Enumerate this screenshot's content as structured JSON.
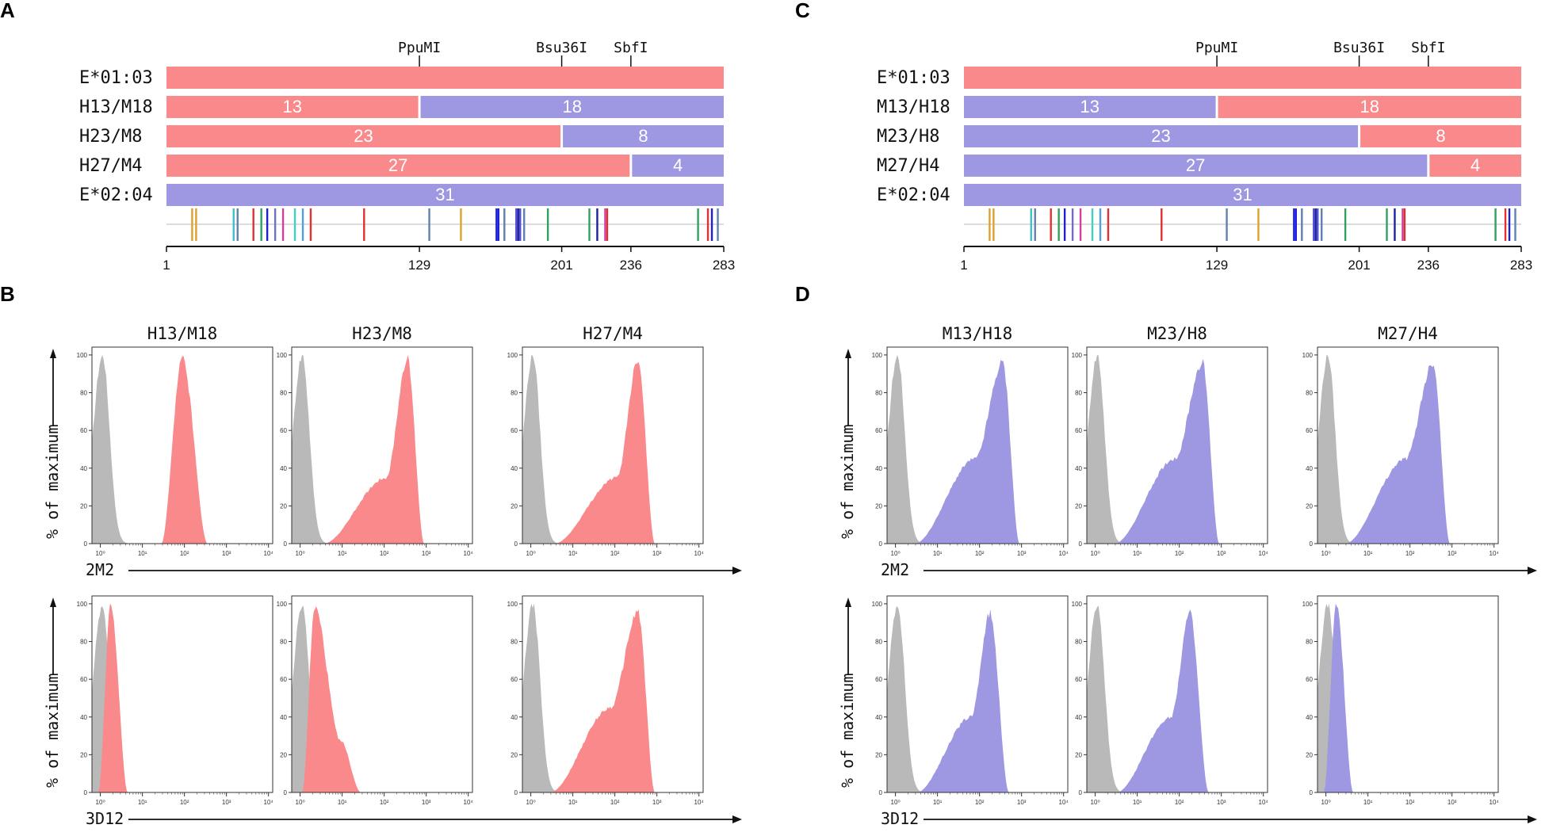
{
  "colors": {
    "red": "#f9898b",
    "blue": "#9d98e1",
    "gray": "#b9b9b9"
  },
  "panels": {
    "A": {
      "letter": "A",
      "sites": [
        "PpuMI",
        "Bsu36I",
        "SbfI"
      ],
      "rows": [
        {
          "label": "E*01:03",
          "segments": [
            {
              "text": "",
              "color": "red",
              "start": 1,
              "end": 283
            }
          ]
        },
        {
          "label": "H13/M18",
          "segments": [
            {
              "text": "13",
              "color": "red",
              "start": 1,
              "end": 129
            },
            {
              "text": "18",
              "color": "blue",
              "start": 129,
              "end": 283
            }
          ]
        },
        {
          "label": "H23/M8",
          "segments": [
            {
              "text": "23",
              "color": "red",
              "start": 1,
              "end": 201
            },
            {
              "text": "8",
              "color": "blue",
              "start": 201,
              "end": 283
            }
          ]
        },
        {
          "label": "H27/M4",
          "segments": [
            {
              "text": "27",
              "color": "red",
              "start": 1,
              "end": 236
            },
            {
              "text": "4",
              "color": "blue",
              "start": 236,
              "end": 283
            }
          ]
        },
        {
          "label": "E*02:04",
          "segments": [
            {
              "text": "31",
              "color": "blue",
              "start": 1,
              "end": 283
            }
          ]
        }
      ]
    },
    "C": {
      "letter": "C",
      "sites": [
        "PpuMI",
        "Bsu36I",
        "SbfI"
      ],
      "rows": [
        {
          "label": "E*01:03",
          "segments": [
            {
              "text": "",
              "color": "red",
              "start": 1,
              "end": 283
            }
          ]
        },
        {
          "label": "M13/H18",
          "segments": [
            {
              "text": "13",
              "color": "blue",
              "start": 1,
              "end": 129
            },
            {
              "text": "18",
              "color": "red",
              "start": 129,
              "end": 283
            }
          ]
        },
        {
          "label": "M23/H8",
          "segments": [
            {
              "text": "23",
              "color": "blue",
              "start": 1,
              "end": 201
            },
            {
              "text": "8",
              "color": "red",
              "start": 201,
              "end": 283
            }
          ]
        },
        {
          "label": "M27/H4",
          "segments": [
            {
              "text": "27",
              "color": "blue",
              "start": 1,
              "end": 236
            },
            {
              "text": "4",
              "color": "red",
              "start": 236,
              "end": 283
            }
          ]
        },
        {
          "label": "E*02:04",
          "segments": [
            {
              "text": "31",
              "color": "blue",
              "start": 1,
              "end": 283
            }
          ]
        }
      ]
    },
    "B": {
      "letter": "B",
      "fill": "red",
      "columns": [
        "H13/M18",
        "H23/M8",
        "H27/M4"
      ],
      "rows": [
        {
          "xlabel": "2M2",
          "ylabel": "% of maximum",
          "hists": [
            "bell_mid",
            "skew_high",
            "skew_high"
          ]
        },
        {
          "xlabel": "3D12",
          "ylabel": "% of maximum",
          "hists": [
            "narrow_low",
            "low_tail",
            "skew_mid"
          ]
        }
      ]
    },
    "D": {
      "letter": "D",
      "fill": "blue",
      "columns": [
        "M13/H18",
        "M23/H8",
        "M27/H4"
      ],
      "rows": [
        {
          "xlabel": "2M2",
          "ylabel": "% of maximum",
          "hists": [
            "skew_mid",
            "skew_mid",
            "skew_mid"
          ]
        },
        {
          "xlabel": "3D12",
          "ylabel": "% of maximum",
          "hists": [
            "skew_low",
            "skew_low",
            "narrow_low"
          ]
        }
      ]
    }
  },
  "alignment": {
    "ticks": [
      "1",
      "129",
      "201",
      "236",
      "283"
    ],
    "site_positions": [
      129,
      201,
      236
    ],
    "marks": [
      {
        "pos": 14,
        "color": "#e0a030"
      },
      {
        "pos": 16,
        "color": "#e0a030"
      },
      {
        "pos": 35,
        "color": "#40c0c0"
      },
      {
        "pos": 37,
        "color": "#6080b0"
      },
      {
        "pos": 45,
        "color": "#e03030"
      },
      {
        "pos": 49,
        "color": "#30a060"
      },
      {
        "pos": 52,
        "color": "#2020d0"
      },
      {
        "pos": 56,
        "color": "#7070c0"
      },
      {
        "pos": 60,
        "color": "#d040a0"
      },
      {
        "pos": 66,
        "color": "#40d0c0"
      },
      {
        "pos": 70,
        "color": "#50a0e0"
      },
      {
        "pos": 74,
        "color": "#e03030"
      },
      {
        "pos": 101,
        "color": "#e03030"
      },
      {
        "pos": 134,
        "color": "#6080b0"
      },
      {
        "pos": 150,
        "color": "#e0a030"
      },
      {
        "pos": 168,
        "color": "#2020e0"
      },
      {
        "pos": 169,
        "color": "#2020e0"
      },
      {
        "pos": 172,
        "color": "#6080b0"
      },
      {
        "pos": 178,
        "color": "#5050d0"
      },
      {
        "pos": 179,
        "color": "#2020a0"
      },
      {
        "pos": 180,
        "color": "#5050d0"
      },
      {
        "pos": 182,
        "color": "#6080b0"
      },
      {
        "pos": 194,
        "color": "#30a060"
      },
      {
        "pos": 215,
        "color": "#30a060"
      },
      {
        "pos": 219,
        "color": "#2020a0"
      },
      {
        "pos": 223,
        "color": "#d040a0"
      },
      {
        "pos": 224,
        "color": "#e03030"
      },
      {
        "pos": 270,
        "color": "#30a060"
      },
      {
        "pos": 275,
        "color": "#e03030"
      },
      {
        "pos": 277,
        "color": "#2020d0"
      },
      {
        "pos": 280,
        "color": "#6080b0"
      }
    ]
  },
  "hist_axis": {
    "ymax_label": "100",
    "yticks": [
      "0",
      "20",
      "40",
      "60",
      "80",
      "100"
    ],
    "xticks": [
      "10⁰",
      "10¹",
      "10²",
      "10³",
      "10⁴"
    ]
  }
}
